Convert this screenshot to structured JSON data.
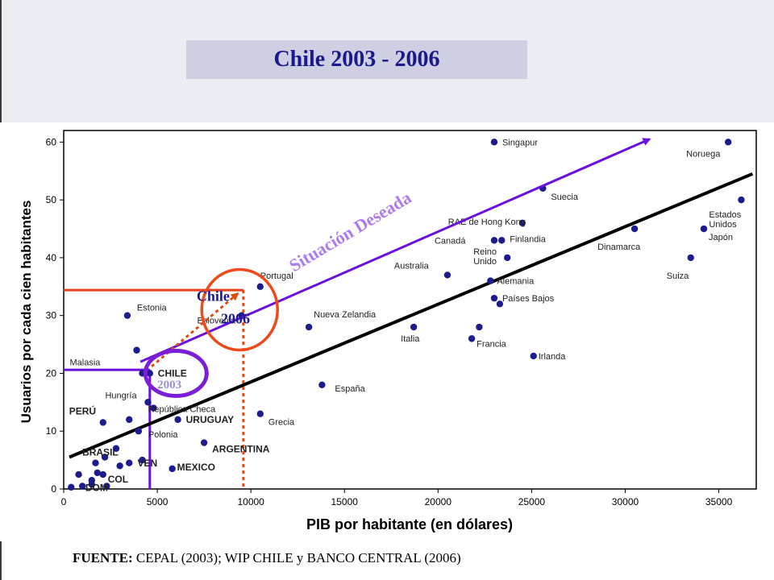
{
  "slide": {
    "title": "Chile 2003 - 2006",
    "source_label": "FUENTE:",
    "source_text": "CEPAL (2003); WIP CHILE y BANCO CENTRAL (2006)"
  },
  "colors": {
    "title_text": "#1a1a8c",
    "title_box": "#cfcfe4",
    "points": "#1c1c8f",
    "trend": "#000000",
    "desired": "#6a11dd",
    "chile_circle": "#ee4a1c",
    "chile2003_circle": "#7a1fd6",
    "guide_orange": "#e8401c",
    "dotted": "#e04a12"
  },
  "chart_data": {
    "type": "scatter",
    "xlabel": "PIB por habitante (en dólares)",
    "ylabel": "Usuarios por cada cien habitantes",
    "xlim": [
      0,
      37000
    ],
    "ylim": [
      0,
      62
    ],
    "xticks": [
      0,
      5000,
      10000,
      15000,
      20000,
      25000,
      30000,
      35000
    ],
    "yticks": [
      0,
      10,
      20,
      30,
      40,
      50,
      60
    ],
    "grid": false,
    "points": [
      {
        "label": "Singapur",
        "x": 23000,
        "y": 60,
        "bold": false
      },
      {
        "label": "Noruega",
        "x": 35500,
        "y": 60,
        "bold": false
      },
      {
        "label": "Suecia",
        "x": 25600,
        "y": 52,
        "bold": false
      },
      {
        "label": "Estados Unidos",
        "x": 36200,
        "y": 50,
        "bold": false
      },
      {
        "label": "RAE de Hong Kong",
        "x": 24500,
        "y": 46,
        "bold": false
      },
      {
        "label": "Dinamarca",
        "x": 30500,
        "y": 45,
        "bold": false
      },
      {
        "label": "Japón",
        "x": 34200,
        "y": 45,
        "bold": false
      },
      {
        "label": "Canadá",
        "x": 23000,
        "y": 43,
        "bold": false
      },
      {
        "label": "Finlandia",
        "x": 23400,
        "y": 43,
        "bold": false
      },
      {
        "label": "Reino Unido",
        "x": 23700,
        "y": 40,
        "bold": false
      },
      {
        "label": "Suiza",
        "x": 33500,
        "y": 40,
        "bold": false
      },
      {
        "label": "Australia",
        "x": 20500,
        "y": 37,
        "bold": false
      },
      {
        "label": "Alemania",
        "x": 22800,
        "y": 36,
        "bold": false
      },
      {
        "label": "Portugal",
        "x": 10500,
        "y": 35,
        "bold": false
      },
      {
        "label": "Países Bajos",
        "x": 23000,
        "y": 33,
        "bold": false
      },
      {
        "label": "",
        "x": 23300,
        "y": 32,
        "bold": false
      },
      {
        "label": "Estonia",
        "x": 3400,
        "y": 30,
        "bold": false
      },
      {
        "label": "Eslovenia",
        "x": 9500,
        "y": 30,
        "bold": false
      },
      {
        "label": "Nueva Zelandia",
        "x": 13100,
        "y": 28,
        "bold": false
      },
      {
        "label": "Italia",
        "x": 18700,
        "y": 28,
        "bold": false
      },
      {
        "label": "",
        "x": 22200,
        "y": 28,
        "bold": false
      },
      {
        "label": "Francia",
        "x": 21800,
        "y": 26,
        "bold": false
      },
      {
        "label": "Irlanda",
        "x": 25100,
        "y": 23,
        "bold": false
      },
      {
        "label": "",
        "x": 3900,
        "y": 24,
        "bold": false
      },
      {
        "label": "CHILE",
        "x": 4600,
        "y": 20,
        "bold": true
      },
      {
        "label": "Malasia",
        "x": 4200,
        "y": 20,
        "bold": false
      },
      {
        "label": "España",
        "x": 13800,
        "y": 18,
        "bold": false
      },
      {
        "label": "República Checa",
        "x": 4500,
        "y": 15,
        "bold": false
      },
      {
        "label": "Hungría",
        "x": 4800,
        "y": 14,
        "bold": false
      },
      {
        "label": "Grecia",
        "x": 10500,
        "y": 13,
        "bold": false
      },
      {
        "label": "PERÚ",
        "x": 2100,
        "y": 11.5,
        "bold": true
      },
      {
        "label": "",
        "x": 3500,
        "y": 12,
        "bold": false
      },
      {
        "label": "URUGUAY",
        "x": 6100,
        "y": 12,
        "bold": true
      },
      {
        "label": "Polonia",
        "x": 4000,
        "y": 10,
        "bold": false
      },
      {
        "label": "ARGENTINA",
        "x": 7500,
        "y": 8,
        "bold": true
      },
      {
        "label": "",
        "x": 2800,
        "y": 7,
        "bold": false
      },
      {
        "label": "BRASIL",
        "x": 2200,
        "y": 5.5,
        "bold": true
      },
      {
        "label": "",
        "x": 1700,
        "y": 4.5,
        "bold": false
      },
      {
        "label": "VEN",
        "x": 4200,
        "y": 5,
        "bold": true
      },
      {
        "label": "",
        "x": 3500,
        "y": 4.5,
        "bold": false
      },
      {
        "label": "",
        "x": 3000,
        "y": 4,
        "bold": false
      },
      {
        "label": "MEXICO",
        "x": 5800,
        "y": 3.5,
        "bold": true
      },
      {
        "label": "",
        "x": 800,
        "y": 2.5,
        "bold": false
      },
      {
        "label": "COL",
        "x": 2100,
        "y": 2.5,
        "bold": true
      },
      {
        "label": "",
        "x": 1800,
        "y": 2.8,
        "bold": false
      },
      {
        "label": "",
        "x": 1500,
        "y": 1.5,
        "bold": false
      },
      {
        "label": "DOM",
        "x": 1500,
        "y": 0.8,
        "bold": true
      },
      {
        "label": "",
        "x": 1000,
        "y": 0.5,
        "bold": false
      },
      {
        "label": "",
        "x": 400,
        "y": 0.3,
        "bold": false
      },
      {
        "label": "",
        "x": 2300,
        "y": 0.5,
        "bold": false
      }
    ],
    "trendline": {
      "x": [
        300,
        36800
      ],
      "y": [
        5.5,
        54.5
      ]
    },
    "annotations": {
      "desired": "Situación Deseada",
      "chile_label": "Chile",
      "year_2006": "2006",
      "year_2003": "2003"
    }
  }
}
